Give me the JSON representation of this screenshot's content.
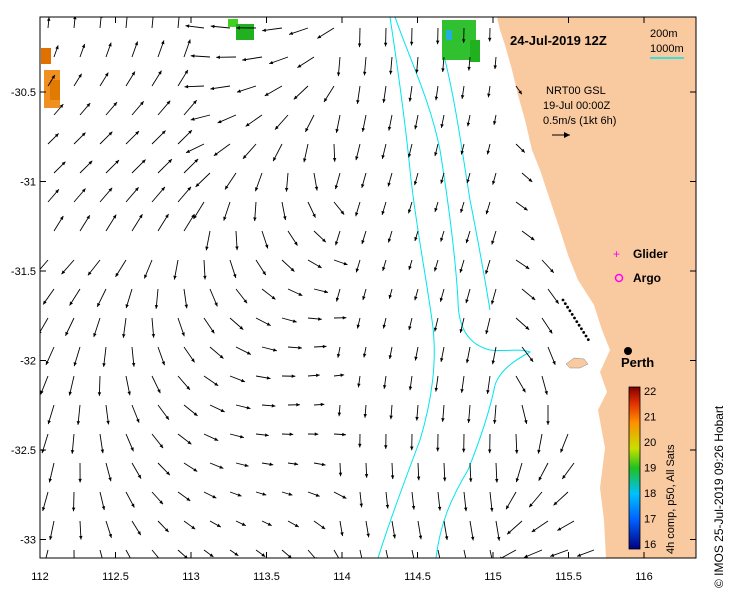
{
  "map": {
    "title": "24-Jul-2019 12Z",
    "depth_contours": [
      "200m",
      "1000m"
    ],
    "model_lines": [
      "NRT00 GSL",
      "19-Jul 00:00Z",
      "0.5m/s (1kt 6h)"
    ],
    "legend": [
      {
        "symbol": "plus",
        "label": "Glider",
        "color": "#ff00ff"
      },
      {
        "symbol": "circle",
        "label": "Argo",
        "color": "#ff00ff"
      }
    ],
    "city": "Perth",
    "lon_ticks": [
      "112",
      "112.5",
      "113",
      "113.5",
      "114",
      "114.5",
      "115",
      "115.5",
      "116"
    ],
    "lat_ticks": [
      "-30.5",
      "-31",
      "-31.5",
      "-32",
      "-32.5",
      "-33"
    ],
    "colorbar": {
      "ticks": [
        "22",
        "21",
        "20",
        "19",
        "18",
        "17",
        "16"
      ],
      "label": "4h comp, p50, All Sats",
      "min": 16,
      "max": 22
    },
    "credit": "© IMOS 25-Jul-2019 09:26 Hobart",
    "colors": {
      "land": "#f9c9a0",
      "contour": "#00e5ee",
      "glider": "#ff00ff",
      "argo": "#ff00ff"
    }
  }
}
